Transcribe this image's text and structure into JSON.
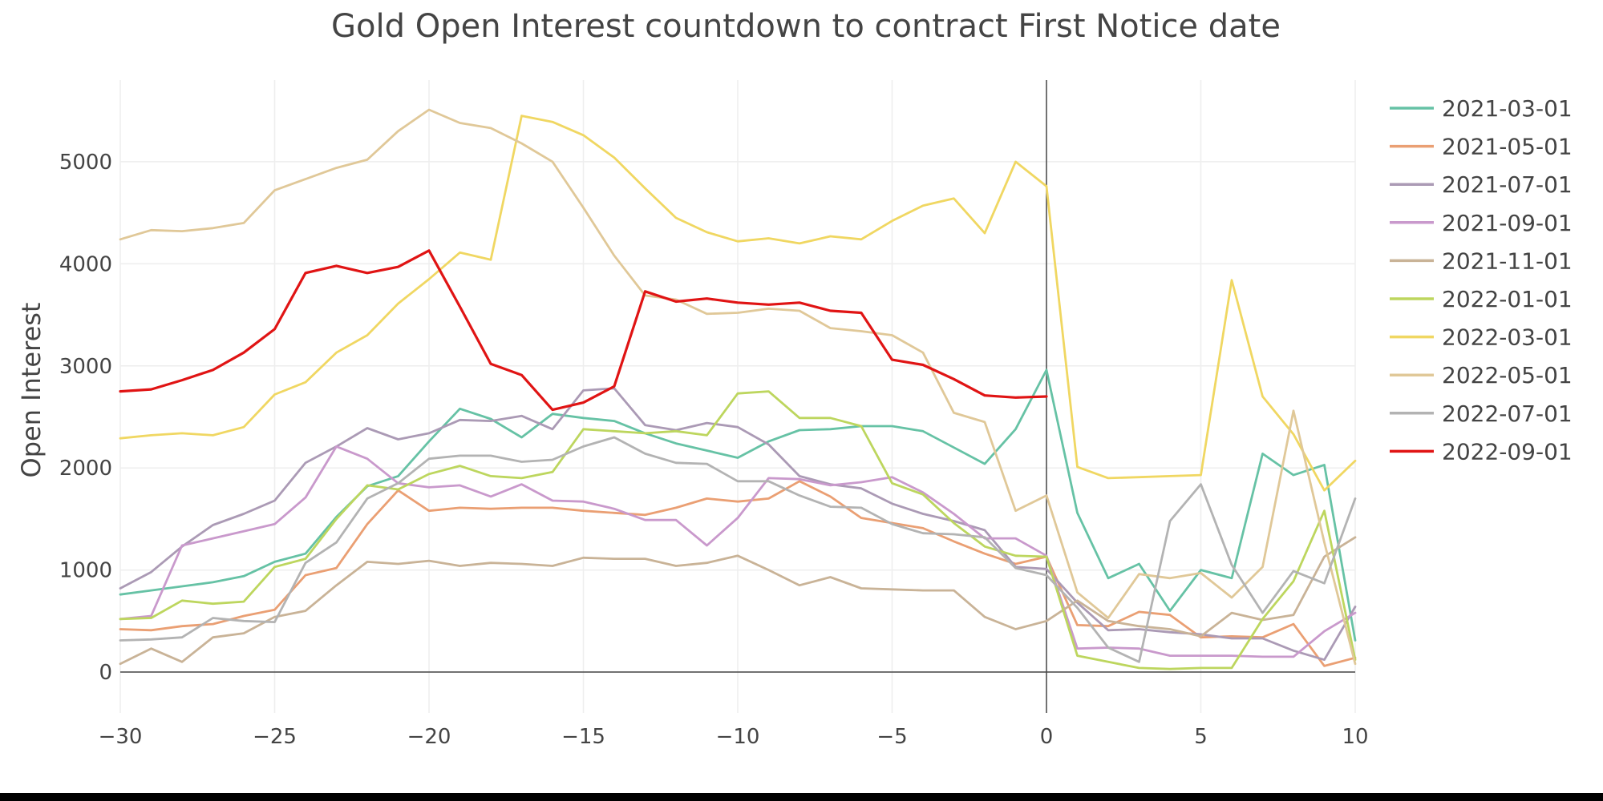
{
  "chart_data": {
    "type": "line",
    "title": "Gold Open Interest countdown to contract First Notice date",
    "xlabel": "",
    "ylabel": "Open Interest",
    "xlim": [
      -30,
      10
    ],
    "ylim": [
      -400,
      5800
    ],
    "x_ticks": [
      -30,
      -25,
      -20,
      -15,
      -10,
      -5,
      0,
      5,
      10
    ],
    "x_tick_labels": [
      "−30",
      "−25",
      "−20",
      "−15",
      "−10",
      "−5",
      "0",
      "5",
      "10"
    ],
    "y_ticks": [
      0,
      1000,
      2000,
      3000,
      4000,
      5000
    ],
    "y_tick_labels": [
      "0",
      "1000",
      "2000",
      "3000",
      "4000",
      "5000"
    ],
    "grid": true,
    "vertical_reference_line_x": 0,
    "legend_position": "right",
    "x": [
      -30,
      -29,
      -28,
      -27,
      -26,
      -25,
      -24,
      -23,
      -22,
      -21,
      -20,
      -19,
      -18,
      -17,
      -16,
      -15,
      -14,
      -13,
      -12,
      -11,
      -10,
      -9,
      -8,
      -7,
      -6,
      -5,
      -4,
      -3,
      -2,
      -1,
      0,
      1,
      2,
      3,
      4,
      5,
      6,
      7,
      8,
      9,
      10
    ],
    "series": [
      {
        "name": "2021-03-01",
        "color": "#66c2a5",
        "values": [
          760,
          800,
          840,
          880,
          940,
          1080,
          1160,
          1520,
          1820,
          1920,
          2260,
          2580,
          2480,
          2300,
          2530,
          2490,
          2460,
          2340,
          2240,
          2170,
          2100,
          2260,
          2370,
          2380,
          2410,
          2410,
          2360,
          2200,
          2040,
          2380,
          2960,
          1560,
          920,
          1060,
          600,
          1000,
          920,
          2140,
          1930,
          2030,
          310
        ]
      },
      {
        "name": "2021-05-01",
        "color": "#ea9f73",
        "values": [
          420,
          410,
          450,
          470,
          550,
          610,
          950,
          1020,
          1450,
          1780,
          1580,
          1610,
          1600,
          1610,
          1610,
          1580,
          1560,
          1540,
          1610,
          1700,
          1670,
          1700,
          1870,
          1720,
          1510,
          1460,
          1410,
          1280,
          1160,
          1060,
          1130,
          460,
          450,
          590,
          560,
          340,
          350,
          340,
          470,
          60,
          140
        ]
      },
      {
        "name": "2021-07-01",
        "color": "#ab9ab5",
        "values": [
          820,
          980,
          1230,
          1440,
          1550,
          1680,
          2050,
          2210,
          2390,
          2280,
          2340,
          2470,
          2460,
          2510,
          2380,
          2760,
          2780,
          2420,
          2370,
          2440,
          2400,
          2230,
          1920,
          1840,
          1800,
          1650,
          1550,
          1480,
          1390,
          1030,
          1010,
          680,
          410,
          420,
          390,
          370,
          330,
          330,
          210,
          120,
          640
        ]
      },
      {
        "name": "2021-09-01",
        "color": "#c999cc",
        "values": [
          520,
          550,
          1240,
          1310,
          1380,
          1450,
          1710,
          2210,
          2090,
          1850,
          1810,
          1830,
          1720,
          1840,
          1680,
          1670,
          1600,
          1490,
          1490,
          1240,
          1510,
          1900,
          1890,
          1830,
          1860,
          1910,
          1760,
          1550,
          1310,
          1310,
          1140,
          230,
          240,
          230,
          160,
          160,
          160,
          150,
          150,
          400,
          580
        ]
      },
      {
        "name": "2021-11-01",
        "color": "#c9b397",
        "values": [
          80,
          230,
          100,
          340,
          380,
          540,
          600,
          850,
          1080,
          1060,
          1090,
          1040,
          1070,
          1060,
          1040,
          1120,
          1110,
          1110,
          1040,
          1070,
          1140,
          1000,
          850,
          930,
          820,
          810,
          800,
          800,
          540,
          420,
          500,
          700,
          500,
          450,
          420,
          350,
          580,
          510,
          560,
          1130,
          1320
        ]
      },
      {
        "name": "2022-01-01",
        "color": "#bdd65e",
        "values": [
          520,
          530,
          700,
          670,
          690,
          1030,
          1110,
          1500,
          1830,
          1790,
          1940,
          2020,
          1920,
          1900,
          1960,
          2380,
          2360,
          2340,
          2360,
          2320,
          2730,
          2750,
          2490,
          2490,
          2410,
          1850,
          1740,
          1460,
          1230,
          1140,
          1130,
          160,
          100,
          40,
          30,
          40,
          40,
          520,
          890,
          1580,
          120
        ]
      },
      {
        "name": "2022-03-01",
        "color": "#f0d762",
        "values": [
          2290,
          2320,
          2340,
          2320,
          2400,
          2720,
          2840,
          3130,
          3300,
          3610,
          3850,
          4110,
          4040,
          5450,
          5390,
          5260,
          5040,
          4740,
          4450,
          4310,
          4220,
          4250,
          4200,
          4270,
          4240,
          4420,
          4570,
          4640,
          4300,
          5000,
          4760,
          2010,
          1900,
          1910,
          1920,
          1930,
          3840,
          2700,
          2330,
          1780,
          2070
        ]
      },
      {
        "name": "2022-05-01",
        "color": "#e0c898",
        "values": [
          4240,
          4330,
          4320,
          4350,
          4400,
          4720,
          4830,
          4940,
          5020,
          5300,
          5510,
          5380,
          5330,
          5180,
          5000,
          4550,
          4080,
          3690,
          3650,
          3510,
          3520,
          3560,
          3540,
          3370,
          3340,
          3300,
          3130,
          2540,
          2450,
          1580,
          1730,
          780,
          530,
          960,
          920,
          970,
          730,
          1030,
          2560,
          1270,
          80
        ]
      },
      {
        "name": "2022-07-01",
        "color": "#b3b3b3",
        "values": [
          310,
          320,
          340,
          530,
          500,
          490,
          1070,
          1270,
          1700,
          1850,
          2090,
          2120,
          2120,
          2060,
          2080,
          2210,
          2300,
          2140,
          2050,
          2040,
          1870,
          1870,
          1730,
          1620,
          1610,
          1450,
          1360,
          1350,
          1320,
          1020,
          950,
          630,
          240,
          100,
          1480,
          1840,
          1050,
          580,
          990,
          870,
          1700
        ]
      },
      {
        "name": "2022-09-01",
        "color": "#e01414",
        "values": [
          2750,
          2770,
          2860,
          2960,
          3130,
          3360,
          3910,
          3980,
          3910,
          3970,
          4130,
          3580,
          3020,
          2910,
          2570,
          2640,
          2800,
          3730,
          3630,
          3660,
          3620,
          3600,
          3620,
          3540,
          3520,
          3060,
          3010,
          2870,
          2710,
          2690,
          2700,
          null,
          null,
          null,
          null,
          null,
          null,
          null,
          null,
          null,
          null
        ]
      }
    ]
  }
}
